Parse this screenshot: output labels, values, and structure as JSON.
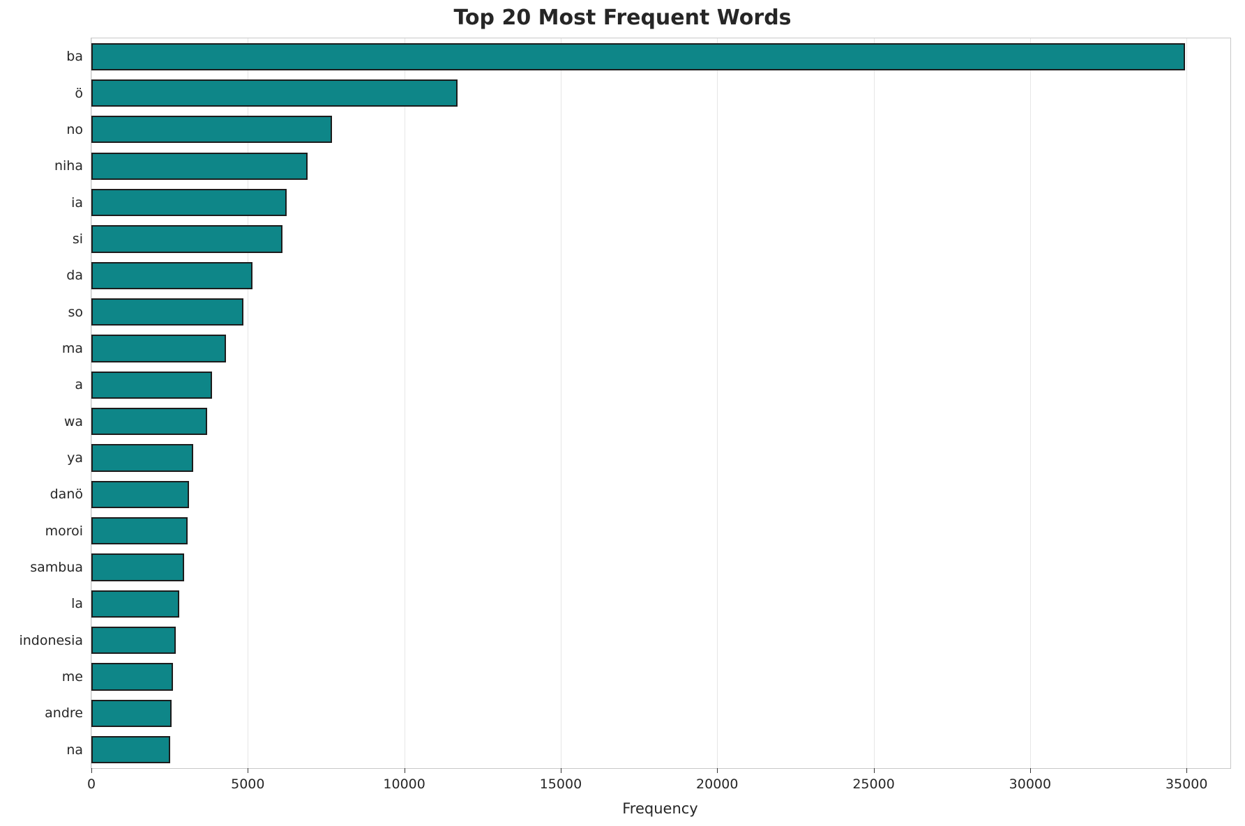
{
  "colors": {
    "bar_fill": "#0e8688",
    "bar_edge": "#1c1c1c",
    "grid": "#e6e6e6",
    "axis_spine": "#c8c8c8",
    "text": "#262626"
  },
  "chart_data": {
    "type": "bar",
    "orientation": "horizontal",
    "title": "Top 20 Most Frequent Words",
    "xlabel": "Frequency",
    "ylabel": "",
    "categories": [
      "ba",
      "ö",
      "no",
      "niha",
      "ia",
      "si",
      "da",
      "so",
      "ma",
      "a",
      "wa",
      "ya",
      "danö",
      "moroi",
      "sambua",
      "la",
      "indonesia",
      "me",
      "andre",
      "na"
    ],
    "values": [
      34950,
      11700,
      7700,
      6900,
      6250,
      6100,
      5150,
      4870,
      4300,
      3850,
      3700,
      3260,
      3130,
      3080,
      2960,
      2800,
      2700,
      2600,
      2570,
      2520
    ],
    "xlim": [
      0,
      36400
    ],
    "xticks": [
      0,
      5000,
      10000,
      15000,
      20000,
      25000,
      30000,
      35000
    ],
    "grid": true,
    "legend": false,
    "bar_band_fraction": 0.75
  }
}
